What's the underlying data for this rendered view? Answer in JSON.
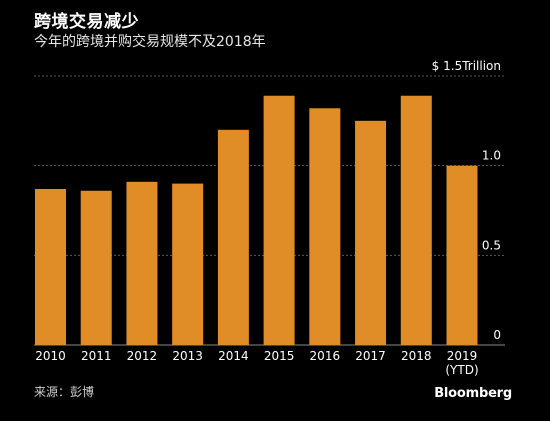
{
  "header": {
    "title": "跨境交易减少",
    "subtitle": "今年的跨境并购交易规模不及2018年"
  },
  "footer": {
    "source": "来源：彭博",
    "brand": "Bloomberg"
  },
  "colors": {
    "bar": "#E08C27",
    "grid": "#5a5a5a",
    "background": "#000000"
  },
  "chart_data": {
    "type": "bar",
    "title": "跨境交易减少",
    "subtitle": "今年的跨境并购交易规模不及2018年",
    "xlabel": "",
    "ylabel": "",
    "unit": "$ Trillion",
    "ylim": [
      0,
      1.5
    ],
    "yticks": [
      {
        "value": 1.5,
        "label": "$ 1.5Trillion"
      },
      {
        "value": 1.0,
        "label": "1.0"
      },
      {
        "value": 0.5,
        "label": "0.5"
      },
      {
        "value": 0,
        "label": "0"
      }
    ],
    "grid": true,
    "categories": [
      "2010",
      "2011",
      "2012",
      "2013",
      "2014",
      "2015",
      "2016",
      "2017",
      "2018",
      "2019\n(YTD)"
    ],
    "values": [
      0.87,
      0.86,
      0.91,
      0.9,
      1.2,
      1.39,
      1.32,
      1.25,
      1.39,
      1.0
    ]
  }
}
